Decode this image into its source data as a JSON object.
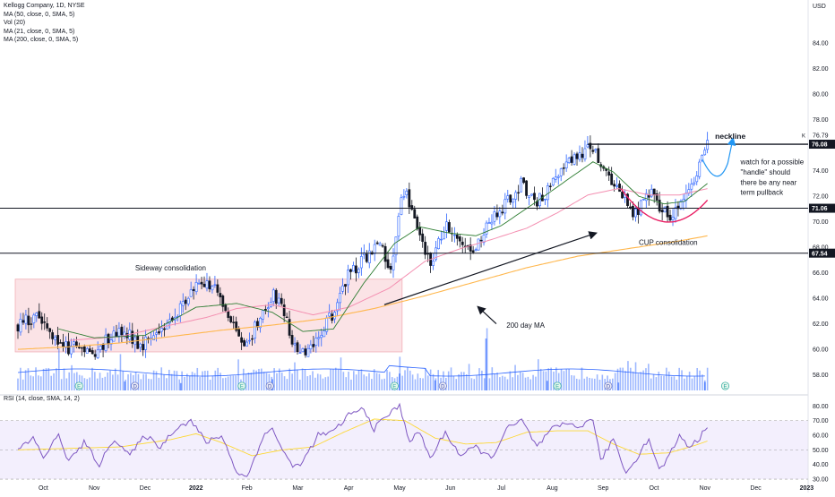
{
  "header": {
    "lines": [
      "Kellogg Company, 1D, NYSE",
      "MA (50, close, 0, SMA, 5)",
      "Vol (20)",
      "MA (21, close, 0, SMA, 5)",
      "MA (200, close, 0, SMA, 5)"
    ],
    "currency": "USD",
    "rsi_label": "RSI (14, close, SMA, 14, 2)"
  },
  "colors": {
    "up": "#2962ff",
    "down": "#131722",
    "ma50": "#f48fb1",
    "ma21": "#2e7d32",
    "ma200": "#ffb74d",
    "rsi": "#7e57c2",
    "rsi_ma": "#fdd835",
    "box_fill": "#fbe1e4",
    "box_stroke": "#f0a8b0",
    "cup": "#e91e63",
    "arrow_blue": "#2196f3",
    "volume": "#2962ff"
  },
  "chart_data": [
    {
      "type": "candlestick",
      "ticker": "Kellogg Company",
      "interval": "1D",
      "exchange": "NYSE",
      "y_unit": "USD",
      "ylim": [
        57.2,
        86.4
      ],
      "yticks": [
        58,
        60,
        62,
        64,
        66,
        68,
        70,
        72,
        74,
        76,
        78,
        80,
        82,
        84
      ],
      "ytick_labels": [
        "58.00",
        "60.00",
        "62.00",
        "64.00",
        "66.00",
        "68.00",
        "70.00",
        "72.00",
        "74.00",
        "76.00",
        "78.00",
        "80.00",
        "82.00",
        "84.00"
      ],
      "xticks": [
        "Oct",
        "Nov",
        "Dec",
        "2022",
        "Feb",
        "Mar",
        "Apr",
        "May",
        "Jun",
        "Jul",
        "Aug",
        "Sep",
        "Oct",
        "Nov",
        "Dec",
        "2023"
      ],
      "xtick_positions": [
        0.5,
        1.5,
        2.5,
        3.5,
        4.5,
        5.5,
        6.5,
        7.5,
        8.5,
        9.5,
        10.5,
        11.5,
        12.5,
        13.5,
        14.5,
        15.5
      ],
      "price_anchors": [
        [
          0,
          61.8
        ],
        [
          0.3,
          62.6
        ],
        [
          0.6,
          61.3
        ],
        [
          0.9,
          60.1
        ],
        [
          1.2,
          60.4
        ],
        [
          1.5,
          59.7
        ],
        [
          1.8,
          60.9
        ],
        [
          2.1,
          61.6
        ],
        [
          2.4,
          60.3
        ],
        [
          2.7,
          61.3
        ],
        [
          3.0,
          62.3
        ],
        [
          3.3,
          63.8
        ],
        [
          3.5,
          65.2
        ],
        [
          3.7,
          65.5
        ],
        [
          4.0,
          64.2
        ],
        [
          4.3,
          61.0
        ],
        [
          4.5,
          60.5
        ],
        [
          4.8,
          62.6
        ],
        [
          5.0,
          64.5
        ],
        [
          5.2,
          63.1
        ],
        [
          5.4,
          60.6
        ],
        [
          5.6,
          59.6
        ],
        [
          5.9,
          60.6
        ],
        [
          6.2,
          63.0
        ],
        [
          6.5,
          65.9
        ],
        [
          6.9,
          67.6
        ],
        [
          7.15,
          68.1
        ],
        [
          7.3,
          65.6
        ],
        [
          7.5,
          71.2
        ],
        [
          7.65,
          72.3
        ],
        [
          7.85,
          69.3
        ],
        [
          8.1,
          66.6
        ],
        [
          8.4,
          69.6
        ],
        [
          8.7,
          68.3
        ],
        [
          9.0,
          68.1
        ],
        [
          9.3,
          70.0
        ],
        [
          9.6,
          71.6
        ],
        [
          9.9,
          72.9
        ],
        [
          10.2,
          71.4
        ],
        [
          10.5,
          73.1
        ],
        [
          10.8,
          74.6
        ],
        [
          11.1,
          75.6
        ],
        [
          11.25,
          76.1
        ],
        [
          11.45,
          74.3
        ],
        [
          11.7,
          72.6
        ],
        [
          11.95,
          71.5
        ],
        [
          12.15,
          70.6
        ],
        [
          12.4,
          72.4
        ],
        [
          12.6,
          71.1
        ],
        [
          12.8,
          70.5
        ],
        [
          13.0,
          71.6
        ],
        [
          13.2,
          72.9
        ],
        [
          13.4,
          74.5
        ],
        [
          13.55,
          76.8
        ]
      ],
      "moving_averages": {
        "ma21": [
          [
            0.8,
            61.6
          ],
          [
            1.5,
            60.9
          ],
          [
            2.5,
            61.1
          ],
          [
            3.5,
            63.3
          ],
          [
            4.3,
            63.6
          ],
          [
            5.0,
            62.9
          ],
          [
            5.6,
            61.4
          ],
          [
            6.2,
            61.6
          ],
          [
            6.8,
            65.2
          ],
          [
            7.4,
            68.3
          ],
          [
            7.9,
            69.6
          ],
          [
            8.5,
            69.1
          ],
          [
            9.0,
            68.9
          ],
          [
            9.5,
            69.7
          ],
          [
            10.2,
            71.6
          ],
          [
            10.8,
            73.3
          ],
          [
            11.3,
            74.7
          ],
          [
            11.7,
            73.9
          ],
          [
            12.2,
            72.0
          ],
          [
            12.7,
            71.4
          ],
          [
            13.1,
            71.6
          ],
          [
            13.55,
            73.0
          ]
        ],
        "ma50": [
          [
            1.0,
            60.7
          ],
          [
            2.0,
            61.0
          ],
          [
            3.0,
            61.9
          ],
          [
            3.7,
            62.5
          ],
          [
            4.3,
            63.2
          ],
          [
            5.0,
            63.5
          ],
          [
            5.8,
            62.7
          ],
          [
            6.5,
            63.3
          ],
          [
            7.3,
            64.8
          ],
          [
            8.0,
            66.9
          ],
          [
            8.7,
            67.9
          ],
          [
            9.3,
            68.6
          ],
          [
            10.0,
            69.5
          ],
          [
            10.6,
            70.7
          ],
          [
            11.2,
            72.1
          ],
          [
            11.8,
            72.6
          ],
          [
            12.4,
            72.1
          ],
          [
            13.0,
            72.1
          ],
          [
            13.55,
            72.6
          ]
        ],
        "ma200": [
          [
            0,
            60.0
          ],
          [
            1.0,
            60.2
          ],
          [
            2.0,
            60.5
          ],
          [
            3.0,
            61.0
          ],
          [
            4.0,
            61.5
          ],
          [
            5.0,
            61.9
          ],
          [
            6.0,
            62.4
          ],
          [
            7.0,
            63.2
          ],
          [
            8.0,
            64.2
          ],
          [
            9.0,
            65.3
          ],
          [
            10.0,
            66.4
          ],
          [
            11.0,
            67.3
          ],
          [
            12.0,
            67.9
          ],
          [
            13.0,
            68.5
          ],
          [
            13.55,
            68.9
          ]
        ]
      },
      "horizontal_levels": [
        {
          "value": 71.06,
          "label": "71.06"
        },
        {
          "value": 67.54,
          "label": "67.54"
        },
        {
          "value": 76.08,
          "label": "76.08"
        }
      ],
      "top_marker_label": "76.79",
      "top_marker_value": 76.79,
      "annotations": [
        {
          "text": "Sideway  consolidation",
          "x": 3.0,
          "y": 66.2
        },
        {
          "text": "CUP consolidation",
          "x": 12.2,
          "y": 68.2
        },
        {
          "text": "neckline",
          "x": 13.7,
          "y": 76.5
        },
        {
          "text": "200 day MA",
          "x": 9.6,
          "y": 61.7
        },
        {
          "text": "watch for a possible",
          "x": 14.2,
          "y": 74.5
        },
        {
          "text": "\"handle\" should",
          "x": 14.2,
          "y": 73.7
        },
        {
          "text": "there be any near",
          "x": 14.2,
          "y": 72.9
        },
        {
          "text": "term pullback",
          "x": 14.2,
          "y": 72.1
        }
      ],
      "sideway_box": {
        "x0": 0.0,
        "x1": 7.55,
        "y0": 59.8,
        "y1": 65.5
      },
      "neckline_segment": {
        "x0": 11.2,
        "x1": 14.2,
        "y": 76.08
      },
      "volume_spikes": [
        [
          2.1,
          1.6
        ],
        [
          3.2,
          1.3
        ],
        [
          5.0,
          2.0
        ],
        [
          7.5,
          3.0
        ],
        [
          8.2,
          1.8
        ],
        [
          9.2,
          9.2
        ],
        [
          10.4,
          1.7
        ],
        [
          11.8,
          1.4
        ],
        [
          13.5,
          1.5
        ]
      ],
      "event_markers": [
        {
          "x": 1.2,
          "label": "E"
        },
        {
          "x": 2.3,
          "label": "D"
        },
        {
          "x": 4.4,
          "label": "E"
        },
        {
          "x": 4.95,
          "label": "D"
        },
        {
          "x": 7.4,
          "label": "E"
        },
        {
          "x": 8.35,
          "label": "D"
        },
        {
          "x": 10.6,
          "label": "E"
        },
        {
          "x": 11.6,
          "label": "D"
        },
        {
          "x": 13.9,
          "label": "E"
        }
      ]
    },
    {
      "type": "line",
      "name": "RSI (14, close, SMA, 14, 2)",
      "ylim": [
        27,
        82
      ],
      "yticks": [
        30,
        40,
        50,
        60,
        70,
        80
      ],
      "ytick_labels": [
        "30.00",
        "40.00",
        "50.00",
        "60.00",
        "70.00",
        "80.00"
      ],
      "bands": [
        30,
        50,
        70
      ],
      "rsi": [
        [
          0,
          50
        ],
        [
          0.3,
          58
        ],
        [
          0.5,
          45
        ],
        [
          0.8,
          60
        ],
        [
          1.0,
          42
        ],
        [
          1.3,
          55
        ],
        [
          1.6,
          40
        ],
        [
          1.9,
          58
        ],
        [
          2.2,
          46
        ],
        [
          2.5,
          60
        ],
        [
          2.8,
          52
        ],
        [
          3.1,
          65
        ],
        [
          3.4,
          70
        ],
        [
          3.7,
          55
        ],
        [
          4.0,
          60
        ],
        [
          4.3,
          35
        ],
        [
          4.5,
          31
        ],
        [
          4.8,
          58
        ],
        [
          5.0,
          65
        ],
        [
          5.2,
          50
        ],
        [
          5.4,
          38
        ],
        [
          5.6,
          42
        ],
        [
          5.9,
          60
        ],
        [
          6.2,
          62
        ],
        [
          6.5,
          74
        ],
        [
          6.8,
          78
        ],
        [
          7.0,
          64
        ],
        [
          7.2,
          72
        ],
        [
          7.5,
          80
        ],
        [
          7.7,
          56
        ],
        [
          7.9,
          62
        ],
        [
          8.1,
          44
        ],
        [
          8.4,
          62
        ],
        [
          8.7,
          46
        ],
        [
          9.0,
          52
        ],
        [
          9.3,
          44
        ],
        [
          9.6,
          64
        ],
        [
          9.9,
          70
        ],
        [
          10.2,
          52
        ],
        [
          10.5,
          64
        ],
        [
          10.8,
          68
        ],
        [
          11.1,
          66
        ],
        [
          11.3,
          72
        ],
        [
          11.45,
          42
        ],
        [
          11.7,
          58
        ],
        [
          11.95,
          34
        ],
        [
          12.15,
          44
        ],
        [
          12.4,
          58
        ],
        [
          12.6,
          36
        ],
        [
          12.8,
          46
        ],
        [
          13.0,
          60
        ],
        [
          13.2,
          52
        ],
        [
          13.4,
          58
        ],
        [
          13.55,
          67
        ]
      ],
      "rsi_ma": [
        [
          0,
          50
        ],
        [
          1.0,
          51
        ],
        [
          2.0,
          52
        ],
        [
          3.0,
          57
        ],
        [
          3.5,
          61
        ],
        [
          4.0,
          55
        ],
        [
          4.6,
          46
        ],
        [
          5.2,
          50
        ],
        [
          5.8,
          52
        ],
        [
          6.4,
          62
        ],
        [
          7.0,
          71
        ],
        [
          7.6,
          70
        ],
        [
          8.2,
          58
        ],
        [
          8.8,
          54
        ],
        [
          9.4,
          55
        ],
        [
          10.0,
          62
        ],
        [
          10.6,
          63
        ],
        [
          11.2,
          63
        ],
        [
          11.7,
          54
        ],
        [
          12.2,
          47
        ],
        [
          12.8,
          48
        ],
        [
          13.3,
          53
        ],
        [
          13.55,
          56
        ]
      ]
    }
  ]
}
